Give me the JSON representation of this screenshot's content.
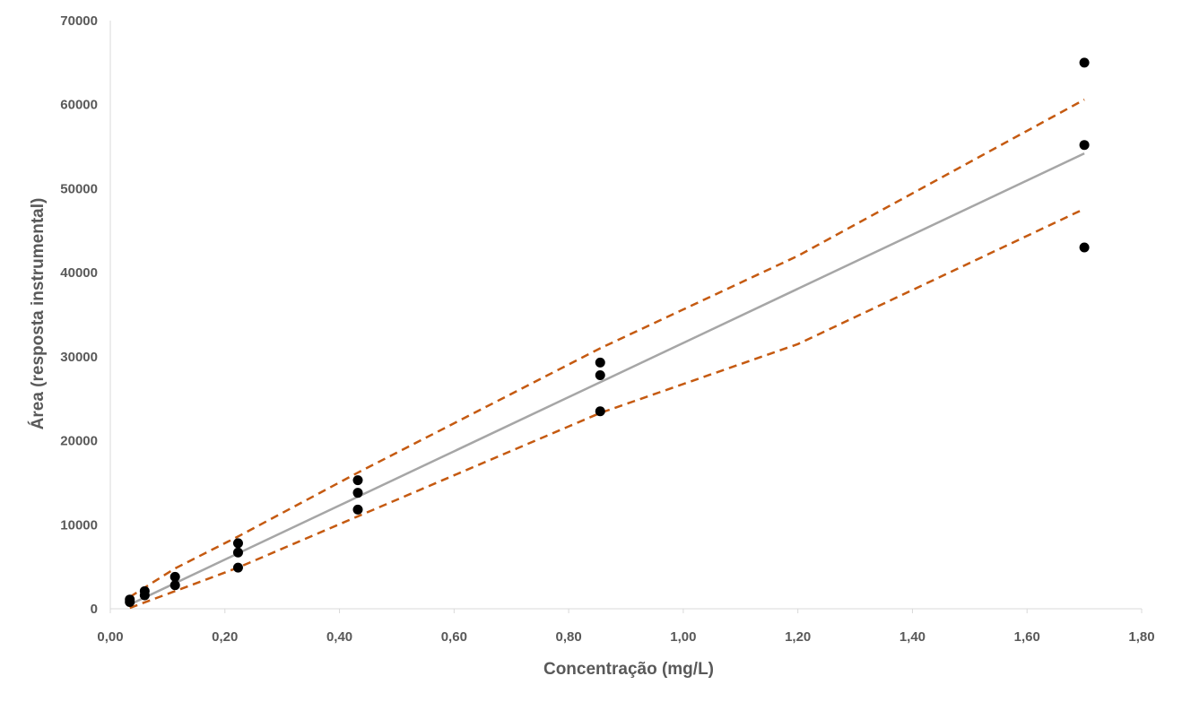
{
  "chart_data": {
    "type": "scatter",
    "title": "",
    "xlabel": "Concentração (mg/L)",
    "ylabel": "Área (resposta instrumental)",
    "xlim": [
      0,
      1.8
    ],
    "ylim": [
      0,
      70000
    ],
    "x_ticks": [
      "0,00",
      "0,20",
      "0,40",
      "0,60",
      "0,80",
      "1,00",
      "1,20",
      "1,40",
      "1,60",
      "1,80"
    ],
    "y_ticks": [
      "0",
      "10000",
      "20000",
      "30000",
      "40000",
      "50000",
      "60000",
      "70000"
    ],
    "x_tick_values": [
      0,
      0.2,
      0.4,
      0.6,
      0.8,
      1.0,
      1.2,
      1.4,
      1.6,
      1.8
    ],
    "y_tick_values": [
      0,
      10000,
      20000,
      30000,
      40000,
      50000,
      60000,
      70000
    ],
    "grid": false,
    "legend": "none",
    "colors": {
      "points": "#000000",
      "fit": "#a6a6a6",
      "bands": "#c55a11",
      "axis": "#d9d9d9",
      "text": "#595959"
    },
    "points": [
      {
        "x": 0.034,
        "y": 800
      },
      {
        "x": 0.034,
        "y": 1100
      },
      {
        "x": 0.06,
        "y": 1600
      },
      {
        "x": 0.06,
        "y": 2100
      },
      {
        "x": 0.113,
        "y": 2800
      },
      {
        "x": 0.113,
        "y": 3800
      },
      {
        "x": 0.223,
        "y": 4900
      },
      {
        "x": 0.223,
        "y": 6700
      },
      {
        "x": 0.223,
        "y": 7800
      },
      {
        "x": 0.432,
        "y": 11800
      },
      {
        "x": 0.432,
        "y": 13800
      },
      {
        "x": 0.432,
        "y": 15300
      },
      {
        "x": 0.855,
        "y": 23500
      },
      {
        "x": 0.855,
        "y": 27800
      },
      {
        "x": 0.855,
        "y": 29300
      },
      {
        "x": 1.7,
        "y": 43000
      },
      {
        "x": 1.7,
        "y": 55200
      },
      {
        "x": 1.7,
        "y": 65000
      }
    ],
    "fit_line": {
      "x": [
        0.034,
        1.7
      ],
      "y": [
        500,
        54200
      ]
    },
    "upper_band": {
      "x": [
        0.034,
        0.113,
        0.223,
        0.432,
        0.855,
        1.2,
        1.7
      ],
      "y": [
        1400,
        4800,
        8600,
        16200,
        31000,
        42000,
        60600
      ]
    },
    "lower_band": {
      "x": [
        0.034,
        0.113,
        0.223,
        0.432,
        0.855,
        1.2,
        1.7
      ],
      "y": [
        100,
        2100,
        4900,
        11000,
        23300,
        31500,
        47600
      ]
    }
  }
}
